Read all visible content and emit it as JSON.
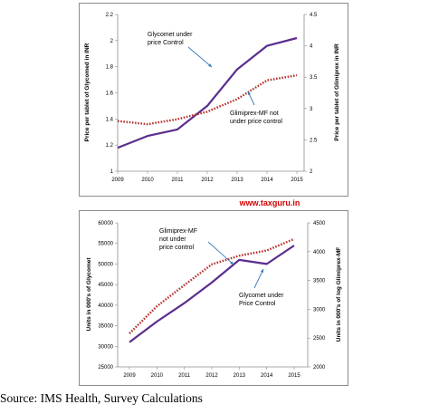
{
  "watermark": "www.taxguru.in",
  "source": "Source: IMS Health, Survey Calculations",
  "colors": {
    "solid": "#5b2d8e",
    "dotted": "#b5322b"
  },
  "chart_data": [
    {
      "type": "line",
      "x": [
        "2009",
        "2010",
        "2011",
        "2012",
        "2013",
        "2014",
        "2015"
      ],
      "ylabel_left": "Price per tablet of Glycomed in INR",
      "ylabel_right": "Price per tablet of Glimiprex in INR",
      "ylim_left": [
        1,
        2.2
      ],
      "ylim_right": [
        2,
        4.5
      ],
      "yticks_left": [
        "1",
        "1.2",
        "1.4",
        "1.6",
        "1.8",
        "2",
        "2.2"
      ],
      "yticks_right": [
        "2",
        "2.5",
        "3",
        "3.5",
        "4",
        "4.5"
      ],
      "grid": false,
      "series": [
        {
          "axis": "left",
          "style": "solid",
          "values": [
            1.18,
            1.27,
            1.32,
            1.5,
            1.78,
            1.96,
            2.02
          ]
        },
        {
          "axis": "right",
          "style": "dotted",
          "values": [
            2.8,
            2.75,
            2.83,
            2.95,
            3.15,
            3.45,
            3.53
          ]
        }
      ],
      "annotations": [
        {
          "lines": [
            "Glycomet under",
            "price Control"
          ]
        },
        {
          "lines": [
            "Glimiprex-MF  not",
            "under price control"
          ]
        }
      ]
    },
    {
      "type": "line",
      "x": [
        "2009",
        "2010",
        "2011",
        "2012",
        "2013",
        "2014",
        "2015"
      ],
      "ylabel_left": "Units in 000's of Glycomet",
      "ylabel_right": "Units in 000's of log Glimiprex-MF",
      "ylim_left": [
        25000,
        60000
      ],
      "ylim_right": [
        2000,
        4500
      ],
      "yticks_left": [
        "25000",
        "30000",
        "35000",
        "40000",
        "45000",
        "50000",
        "55000",
        "60000"
      ],
      "yticks_right": [
        "2000",
        "2500",
        "3000",
        "3500",
        "4000",
        "4500"
      ],
      "grid": false,
      "series": [
        {
          "axis": "left",
          "style": "solid",
          "values": [
            31000,
            36000,
            40500,
            45500,
            51000,
            50000,
            54500
          ]
        },
        {
          "axis": "right",
          "style": "dotted",
          "values": [
            2580,
            3050,
            3420,
            3780,
            3930,
            4020,
            4220
          ]
        }
      ],
      "annotations": [
        {
          "lines": [
            "Glimiprex-MF",
            "not under",
            "price control"
          ]
        },
        {
          "lines": [
            "Glycomet under",
            "Price Control"
          ]
        }
      ]
    }
  ]
}
